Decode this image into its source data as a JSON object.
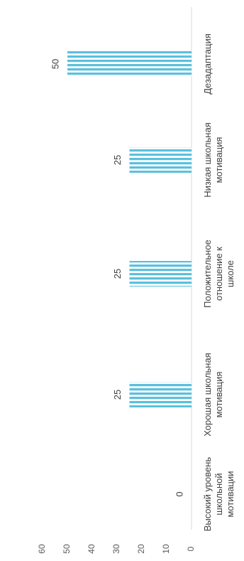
{
  "chart_data": {
    "type": "bar",
    "title": "",
    "xlabel": "",
    "ylabel": "",
    "categories": [
      "Высокий уровень школьной мотивации",
      "Хорошая школьная мотивация",
      "Положительное отношение к школе",
      "Низкая школьная мотивация",
      "Дезадаптация"
    ],
    "values": [
      0,
      25,
      25,
      25,
      50
    ],
    "ylim": [
      0,
      60
    ],
    "yticks": [
      0,
      10,
      20,
      30,
      40,
      50,
      60
    ],
    "grid": false,
    "legend": "none",
    "orientation": "rotated 90° counter-clockwise",
    "bar_fill": "horizontal-stripes",
    "bar_color": "#5bc0de"
  }
}
